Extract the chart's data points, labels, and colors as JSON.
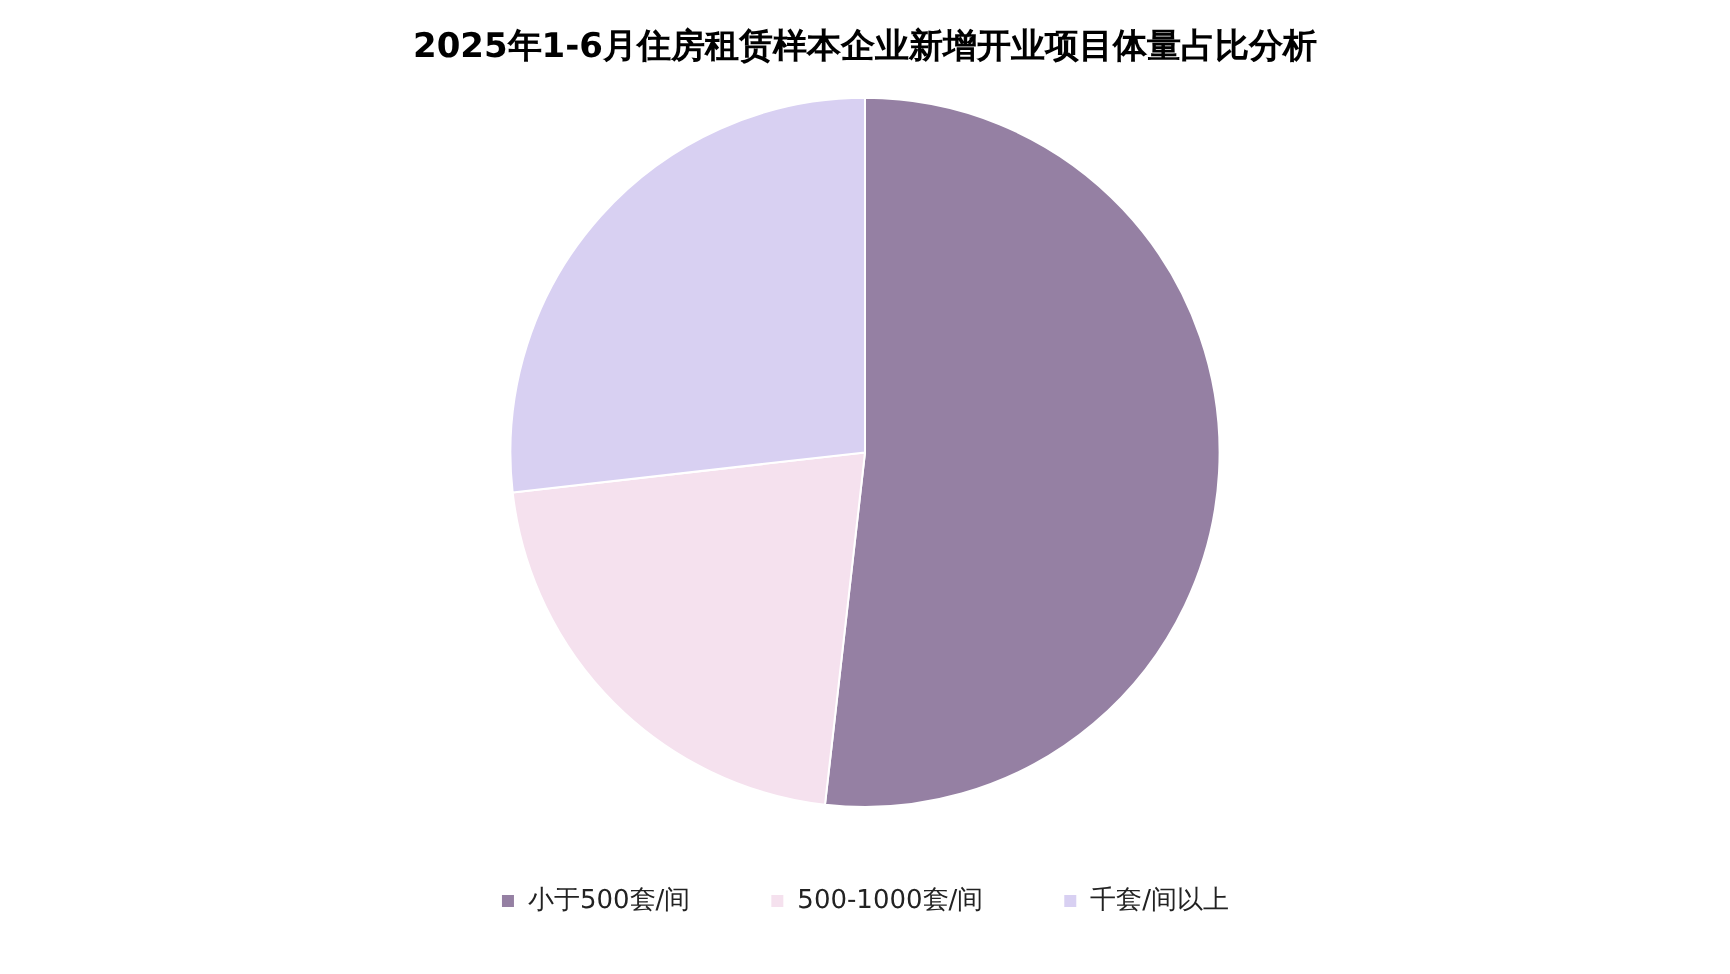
{
  "chart_data": {
    "type": "pie",
    "title": "2025年1-6月住房租赁样本企业新增开业项目体量占比分析",
    "categories": [
      "小于500套/间",
      "500-1000套/间",
      "千套/间以上"
    ],
    "values": [
      51.8,
      21.4,
      26.8
    ],
    "colors": [
      "#9580a3",
      "#f5e1ee",
      "#d8d0f2"
    ],
    "legend": "bottom"
  }
}
